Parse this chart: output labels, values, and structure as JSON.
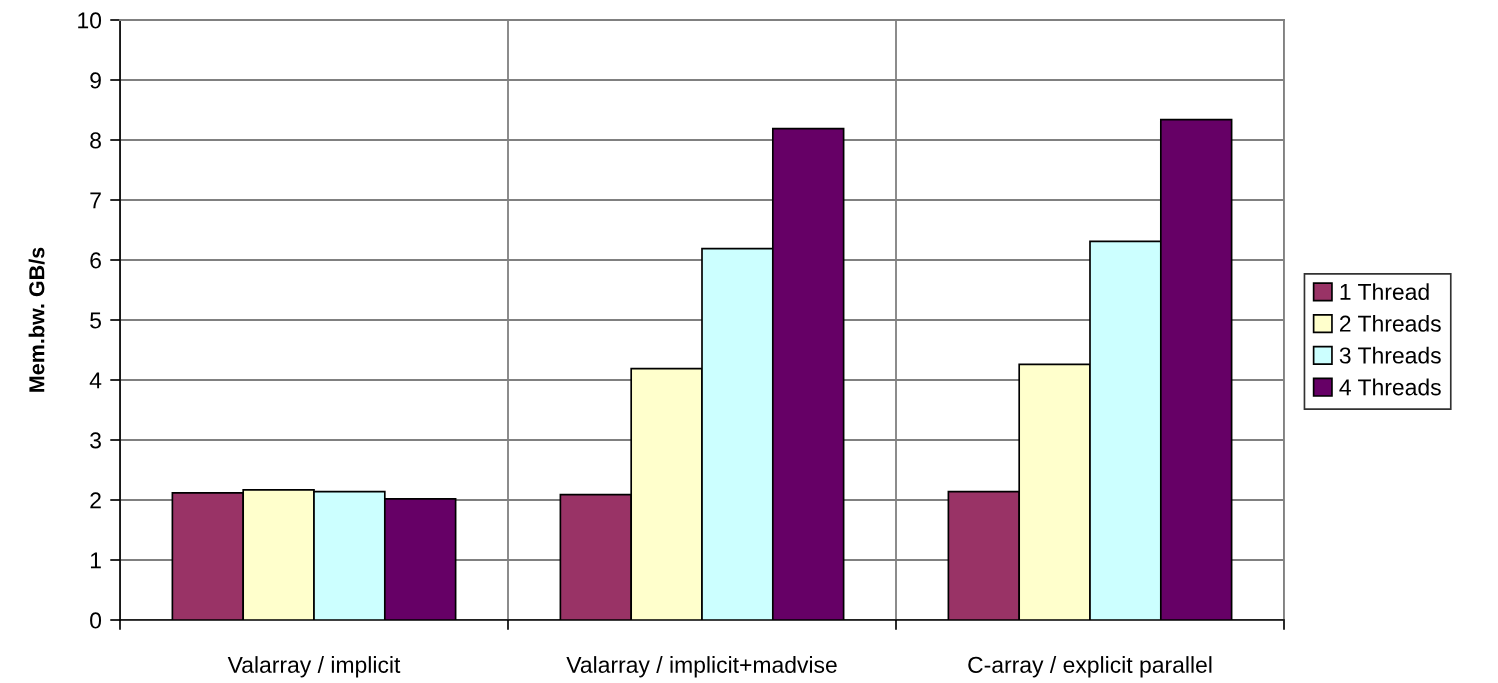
{
  "chart_data": {
    "type": "bar",
    "ylabel": "Mem.bw. GB/s",
    "categories": [
      "Valarray / implicit",
      "Valarray / implicit+madvise",
      "C-array / explicit parallel"
    ],
    "series": [
      {
        "name": "1 Thread",
        "color": "#993366",
        "values": [
          2.12,
          2.09,
          2.14
        ]
      },
      {
        "name": "2 Threads",
        "color": "#ffffcc",
        "values": [
          2.17,
          4.19,
          4.26
        ]
      },
      {
        "name": "3 Threads",
        "color": "#ccffff",
        "values": [
          2.14,
          6.19,
          6.31
        ]
      },
      {
        "name": "4 Threads",
        "color": "#660066",
        "values": [
          2.02,
          8.19,
          8.34
        ]
      }
    ],
    "ylim": [
      0,
      10
    ],
    "yticks": [
      0,
      1,
      2,
      3,
      4,
      5,
      6,
      7,
      8,
      9,
      10
    ],
    "grid": true,
    "legend": "right"
  }
}
